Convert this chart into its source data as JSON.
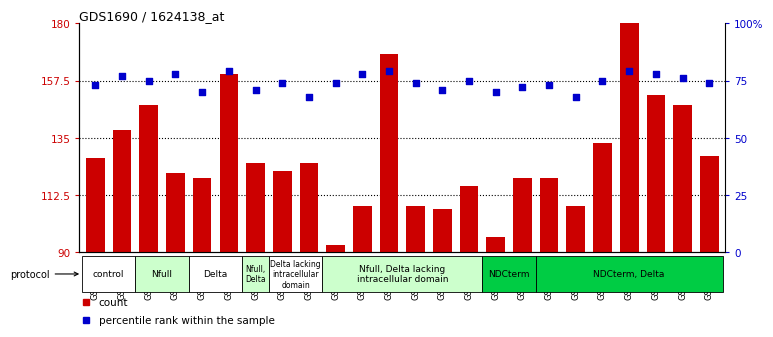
{
  "title": "GDS1690 / 1624138_at",
  "samples": [
    "GSM53393",
    "GSM53396",
    "GSM53403",
    "GSM53397",
    "GSM53399",
    "GSM53408",
    "GSM53390",
    "GSM53401",
    "GSM53406",
    "GSM53402",
    "GSM53388",
    "GSM53398",
    "GSM53392",
    "GSM53400",
    "GSM53405",
    "GSM53409",
    "GSM53410",
    "GSM53411",
    "GSM53395",
    "GSM53404",
    "GSM53389",
    "GSM53391",
    "GSM53394",
    "GSM53407"
  ],
  "counts": [
    127,
    138,
    148,
    121,
    119,
    160,
    125,
    122,
    125,
    93,
    108,
    168,
    108,
    107,
    116,
    96,
    119,
    119,
    108,
    133,
    180,
    152,
    148,
    128
  ],
  "percentile": [
    73,
    77,
    75,
    78,
    70,
    79,
    71,
    74,
    68,
    74,
    78,
    79,
    74,
    71,
    75,
    70,
    72,
    73,
    68,
    75,
    79,
    78,
    76,
    74
  ],
  "ylim_left": [
    90,
    180
  ],
  "ylim_right": [
    0,
    100
  ],
  "yticks_left": [
    90,
    112.5,
    135,
    157.5,
    180
  ],
  "yticks_left_labels": [
    "90",
    "112.5",
    "135",
    "157.5",
    "180"
  ],
  "yticks_right": [
    0,
    25,
    50,
    75,
    100
  ],
  "yticks_right_labels": [
    "0",
    "25",
    "50",
    "75",
    "100%"
  ],
  "bar_color": "#cc0000",
  "dot_color": "#0000cc",
  "bg_color": "#ffffff",
  "groups": [
    {
      "label": "control",
      "i0": 0,
      "i1": 1,
      "color": "#ffffff"
    },
    {
      "label": "Nfull",
      "i0": 2,
      "i1": 3,
      "color": "#ccffcc"
    },
    {
      "label": "Delta",
      "i0": 4,
      "i1": 5,
      "color": "#ffffff"
    },
    {
      "label": "Nfull,\nDelta",
      "i0": 6,
      "i1": 6,
      "color": "#ccffcc"
    },
    {
      "label": "Delta lacking\nintracellular\ndomain",
      "i0": 7,
      "i1": 8,
      "color": "#ffffff"
    },
    {
      "label": "Nfull, Delta lacking\nintracellular domain",
      "i0": 9,
      "i1": 14,
      "color": "#ccffcc"
    },
    {
      "label": "NDCterm",
      "i0": 15,
      "i1": 16,
      "color": "#00cc44"
    },
    {
      "label": "NDCterm, Delta",
      "i0": 17,
      "i1": 23,
      "color": "#00cc44"
    }
  ],
  "legend_count_label": "count",
  "legend_pct_label": "percentile rank within the sample"
}
